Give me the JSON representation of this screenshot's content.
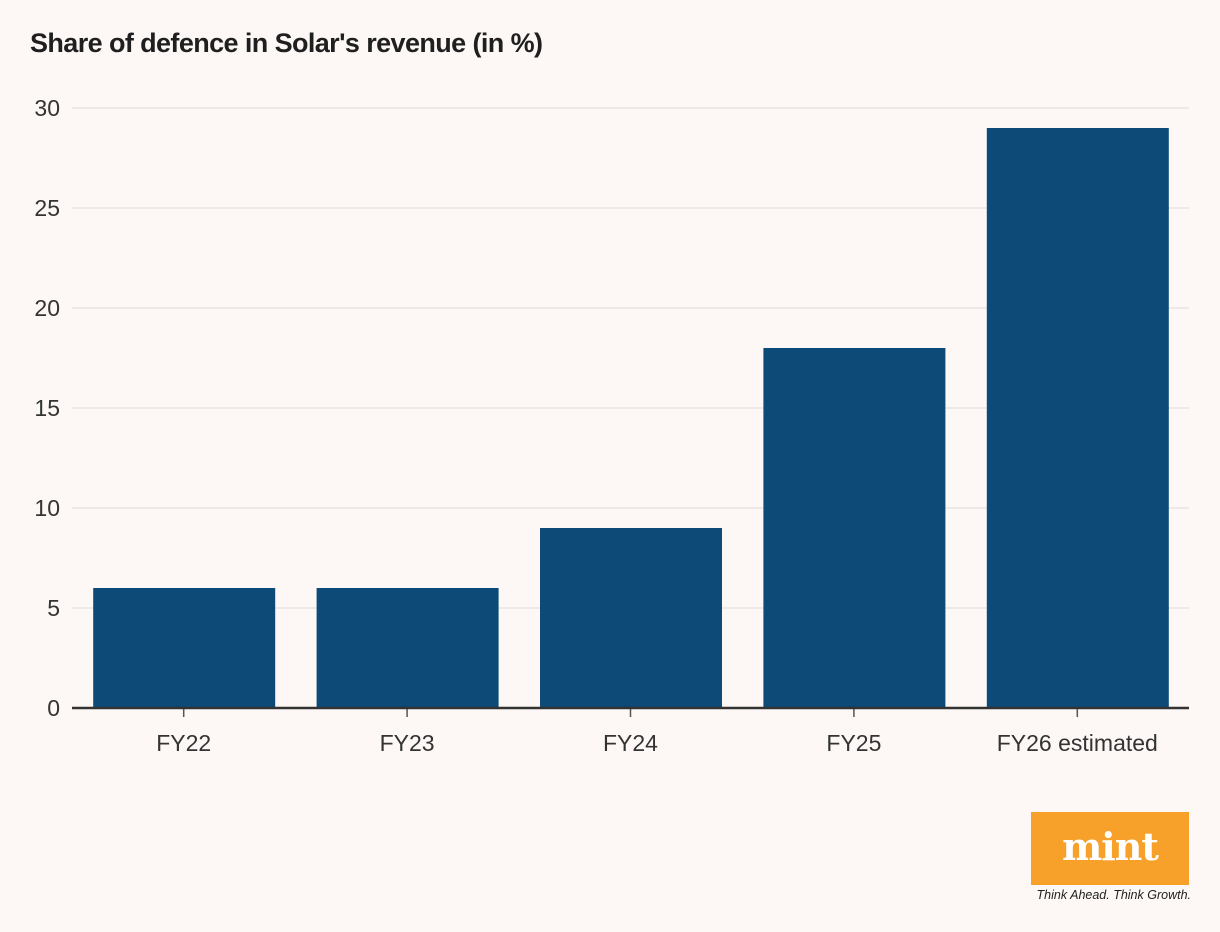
{
  "chart_data": {
    "type": "bar",
    "title": "Share of defence in Solar's revenue (in %)",
    "categories": [
      "FY22",
      "FY23",
      "FY24",
      "FY25",
      "FY26 estimated"
    ],
    "values": [
      6,
      6,
      9,
      18,
      29
    ],
    "ylim": [
      0,
      30
    ],
    "yticks": [
      "0",
      "5",
      "10",
      "15",
      "20",
      "25",
      "30"
    ],
    "grid": true,
    "bar_color": "#0d4a78"
  },
  "branding": {
    "logo_text": "mint",
    "tagline": "Think Ahead. Think Growth.",
    "logo_color": "#f7a12a"
  }
}
